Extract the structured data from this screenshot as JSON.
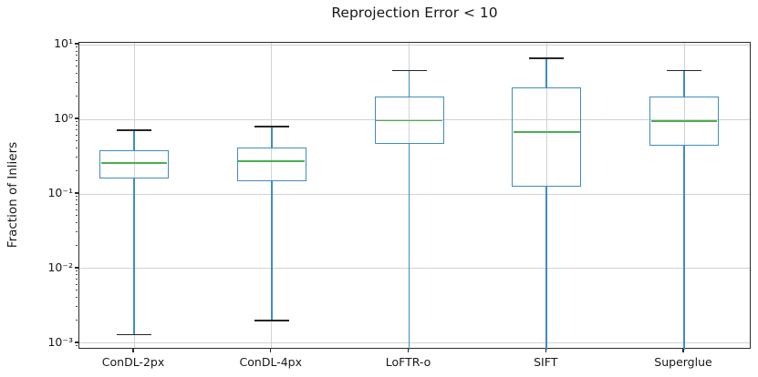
{
  "title": "Reprojection Error < 10",
  "ylabel": "Fraction of Inliers",
  "colors": {
    "box_edge": "#3f8cc4",
    "whisker": "#3f8cc4",
    "median": "#4cae50",
    "cap": "#262626",
    "grid": "#d2d2d2",
    "spine": "#2b2b2b",
    "text": "#181818",
    "background": "#ffffff"
  },
  "chart_data": {
    "type": "boxplot",
    "title": "Reprojection Error < 10",
    "xlabel": "",
    "ylabel": "Fraction of Inliers",
    "y_scale": "log",
    "ylim": [
      0.00082,
      10.6
    ],
    "grid": true,
    "legend": "none",
    "categories": [
      "ConDL-2px",
      "ConDL-4px",
      "LoFTR-o",
      "SIFT",
      "Superglue"
    ],
    "y_tick_exponents": [
      1,
      0,
      -1,
      -2,
      -3
    ],
    "y_tick_labels": [
      "10¹",
      "10⁰",
      "10⁻¹",
      "10⁻²",
      "10⁻³"
    ],
    "series": [
      {
        "name": "ConDL-2px",
        "whisker_low": 0.0013,
        "q1": 0.16,
        "median": 0.26,
        "q3": 0.39,
        "whisker_high": 0.72,
        "whisker_low_clipped": false
      },
      {
        "name": "ConDL-4px",
        "whisker_low": 0.002,
        "q1": 0.15,
        "median": 0.275,
        "q3": 0.42,
        "whisker_high": 0.8,
        "whisker_low_clipped": false
      },
      {
        "name": "LoFTR-o",
        "whisker_low": 0.00082,
        "q1": 0.47,
        "median": 0.96,
        "q3": 2.0,
        "whisker_high": 4.5,
        "whisker_low_clipped": true
      },
      {
        "name": "SIFT",
        "whisker_low": 0.00082,
        "q1": 0.125,
        "median": 0.675,
        "q3": 2.65,
        "whisker_high": 6.6,
        "whisker_low_clipped": true
      },
      {
        "name": "Superglue",
        "whisker_low": 0.00082,
        "q1": 0.44,
        "median": 0.945,
        "q3": 2.0,
        "whisker_high": 4.5,
        "whisker_low_clipped": true
      }
    ],
    "outliers": "none"
  }
}
